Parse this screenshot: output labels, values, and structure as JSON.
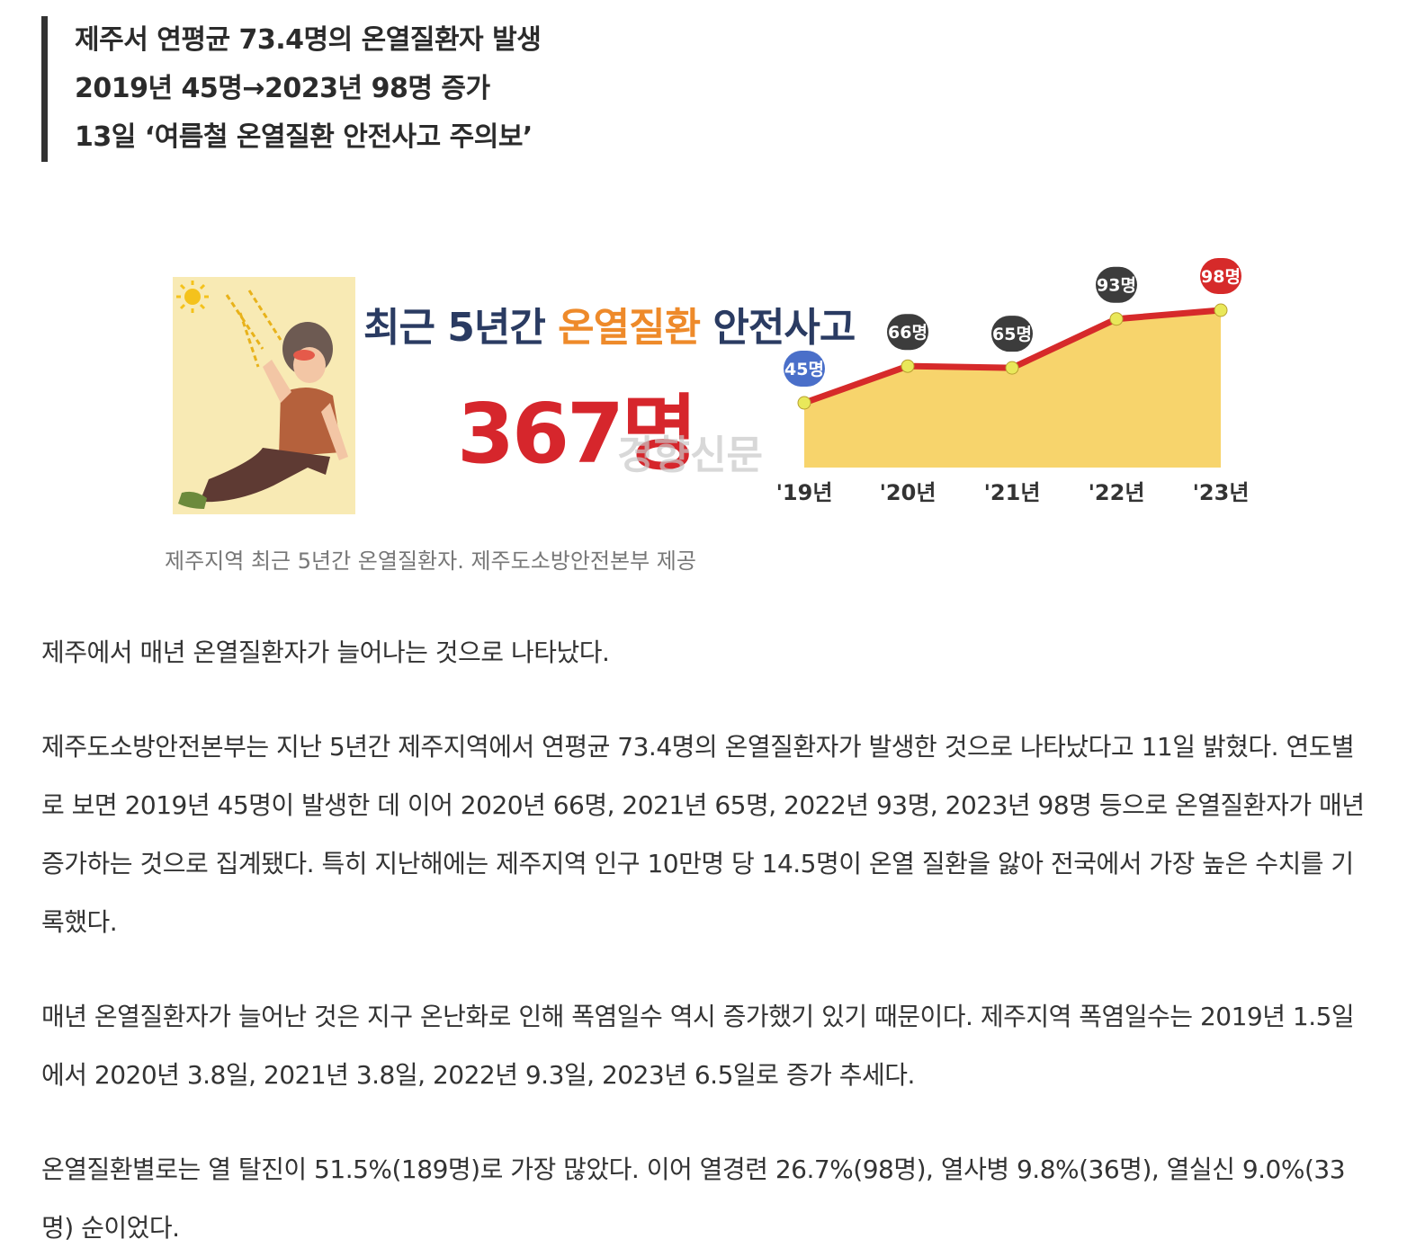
{
  "subheads": [
    "제주서 연평균 73.4명의 온열질환자 발생",
    "2019년 45명→2023년 98명 증가",
    "13일 ‘여름철 온열질환 안전사고 주의보’"
  ],
  "figure": {
    "title_part1": "최근 5년간 ",
    "title_highlight": "온열질환",
    "title_part2": " 안전사고",
    "total": "367명",
    "watermark": "경향신문",
    "caption": "제주지역 최근 5년간 온열질환자. 제주도소방안전본부 제공",
    "colors": {
      "line": "#d62a2a",
      "area": "#f7d46c",
      "point": "#e9e85a",
      "title": "#2a3b62",
      "highlight": "#ee8a2a",
      "total": "#d6262c"
    }
  },
  "chart_data": {
    "type": "area",
    "categories": [
      "'19년",
      "'20년",
      "'21년",
      "'22년",
      "'23년"
    ],
    "values": [
      45,
      66,
      65,
      93,
      98
    ],
    "data_labels": [
      "45명",
      "66명",
      "65명",
      "93명",
      "98명"
    ],
    "label_colors": [
      "#4a6fc9",
      "#3c3c3c",
      "#3c3c3c",
      "#3c3c3c",
      "#d62a2a"
    ],
    "grid": false
  },
  "paragraphs": [
    "제주에서 매년 온열질환자가 늘어나는 것으로 나타났다.",
    "제주도소방안전본부는 지난 5년간 제주지역에서 연평균 73.4명의 온열질환자가 발생한 것으로 나타났다고 11일 밝혔다. 연도별로 보면 2019년 45명이 발생한 데 이어 2020년 66명, 2021년 65명, 2022년 93명, 2023년 98명 등으로 온열질환자가 매년 증가하는 것으로 집계됐다. 특히 지난해에는 제주지역 인구 10만명 당 14.5명이 온열 질환을 앓아 전국에서 가장 높은 수치를 기록했다.",
    "매년 온열질환자가 늘어난 것은 지구 온난화로 인해 폭염일수 역시 증가했기 있기 때문이다. 제주지역 폭염일수는 2019년 1.5일에서 2020년 3.8일, 2021년 3.8일, 2022년 9.3일, 2023년 6.5일로 증가 추세다.",
    "온열질환별로는 열 탈진이 51.5%(189명)로 가장 많았다. 이어 열경련 26.7%(98명), 열사병 9.8%(36명), 열실신 9.0%(33명) 순이었다."
  ]
}
